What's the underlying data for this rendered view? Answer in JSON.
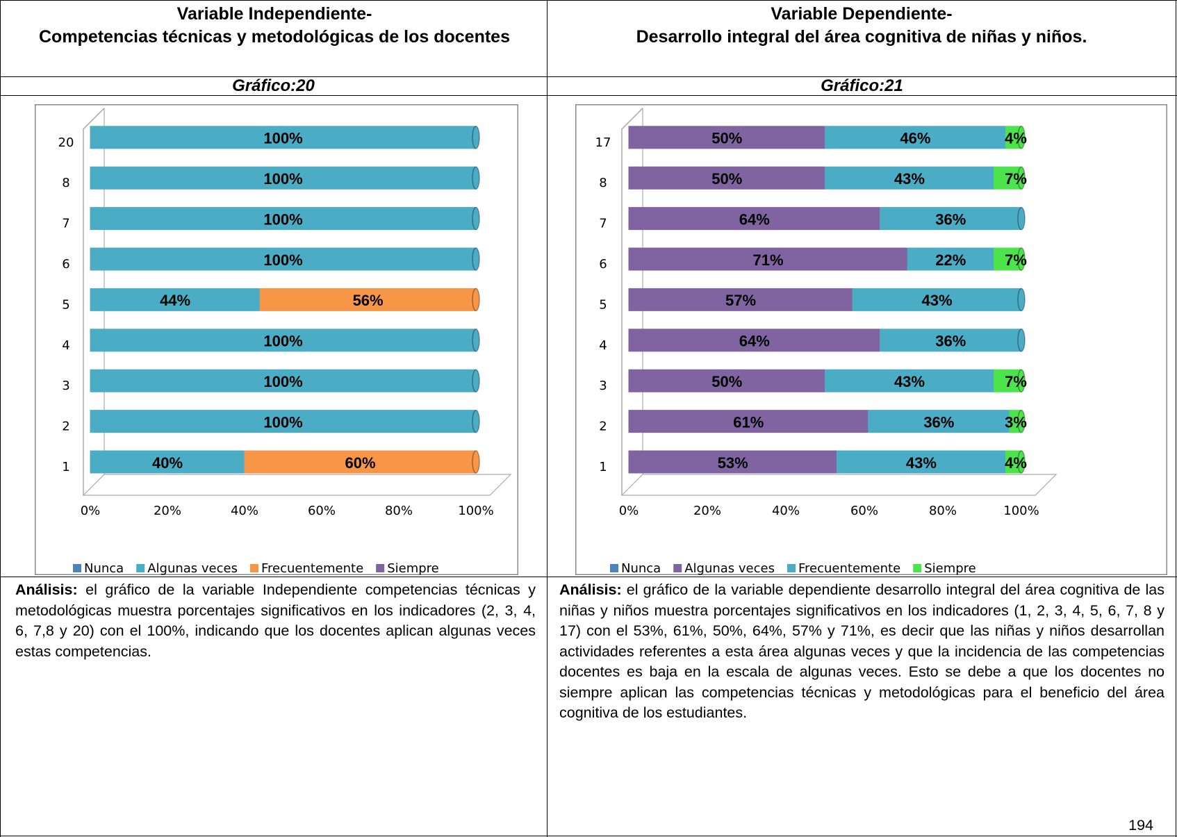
{
  "left": {
    "header_line1": "Variable Independiente-",
    "header_line2": "Competencias técnicas y metodológicas de los docentes",
    "caption": "Gráfico:20",
    "analysis_label": "Análisis:",
    "analysis": "el gráfico de la variable Independiente competencias técnicas y metodológicas muestra porcentajes significativos en los indicadores (2, 3, 4, 6, 7,8 y 20) con el 100%, indicando que los docentes aplican algunas veces estas competencias."
  },
  "right": {
    "header_line1": "Variable Dependiente-",
    "header_line2": "Desarrollo integral del área cognitiva de niñas y niños.",
    "caption": "Gráfico:21",
    "analysis_label": "Análisis:",
    "analysis": "el gráfico de la variable dependiente desarrollo integral del área cognitiva de las niñas y niños muestra porcentajes significativos en los indicadores (1, 2, 3, 4, 5, 6, 7, 8 y 17) con el 53%, 61%, 50%, 64%, 57% y 71%, es decir que las niñas y niños desarrollan actividades referentes a esta área algunas veces y que la incidencia de las competencias docentes es baja en la escala de algunas veces. Esto se debe a que los docentes no siempre aplican las competencias técnicas y metodológicas para el beneficio del área cognitiva de los estudiantes."
  },
  "page_number": "194",
  "chart_data": [
    {
      "type": "bar",
      "orientation": "horizontal",
      "stacked": true,
      "categories": [
        "1",
        "2",
        "3",
        "4",
        "5",
        "6",
        "7",
        "8",
        "20"
      ],
      "xlim": [
        0,
        100
      ],
      "xticks": [
        {
          "value": 0,
          "label": "0%"
        },
        {
          "value": 20,
          "label": "20%"
        },
        {
          "value": 40,
          "label": "40%"
        },
        {
          "value": 60,
          "label": "60%"
        },
        {
          "value": 80,
          "label": "80%"
        },
        {
          "value": 100,
          "label": "100%"
        }
      ],
      "legend": "bottom",
      "series": [
        {
          "name": "Nunca",
          "color": "#4f81bd",
          "values": [
            0,
            0,
            0,
            0,
            0,
            0,
            0,
            0,
            0
          ],
          "value_labels": [
            null,
            null,
            null,
            null,
            null,
            null,
            null,
            null,
            null
          ]
        },
        {
          "name": "Algunas veces",
          "color": "#4bacc6",
          "values": [
            40,
            100,
            100,
            100,
            44,
            100,
            100,
            100,
            100
          ],
          "value_labels": [
            "40%",
            "100%",
            "100%",
            "100%",
            "44%",
            "100%",
            "100%",
            "100%",
            "100%"
          ]
        },
        {
          "name": "Frecuentemente",
          "color": "#f79646",
          "values": [
            60,
            0,
            0,
            0,
            56,
            0,
            0,
            0,
            0
          ],
          "value_labels": [
            "60%",
            null,
            null,
            null,
            "56%",
            null,
            null,
            null,
            null
          ]
        },
        {
          "name": "Siempre",
          "color": "#8064a2",
          "values": [
            0,
            0,
            0,
            0,
            0,
            0,
            0,
            0,
            0
          ],
          "value_labels": [
            null,
            null,
            null,
            null,
            null,
            null,
            null,
            null,
            null
          ]
        }
      ]
    },
    {
      "type": "bar",
      "orientation": "horizontal",
      "stacked": true,
      "categories": [
        "1",
        "2",
        "3",
        "4",
        "5",
        "6",
        "7",
        "8",
        "17"
      ],
      "xlim": [
        0,
        100
      ],
      "xticks": [
        {
          "value": 0,
          "label": "0%"
        },
        {
          "value": 20,
          "label": "20%"
        },
        {
          "value": 40,
          "label": "40%"
        },
        {
          "value": 60,
          "label": "60%"
        },
        {
          "value": 80,
          "label": "80%"
        },
        {
          "value": 100,
          "label": "100%"
        }
      ],
      "legend": "bottom",
      "series": [
        {
          "name": "Nunca",
          "color": "#4f81bd",
          "values": [
            0,
            0,
            0,
            0,
            0,
            0,
            0,
            0,
            0
          ],
          "value_labels": [
            null,
            null,
            null,
            null,
            null,
            null,
            null,
            null,
            null
          ]
        },
        {
          "name": "Algunas veces",
          "color": "#8064a2",
          "values": [
            53,
            61,
            50,
            64,
            57,
            71,
            64,
            50,
            50
          ],
          "value_labels": [
            "53%",
            "61%",
            "50%",
            "64%",
            "57%",
            "71%",
            "64%",
            "50%",
            "50%"
          ]
        },
        {
          "name": "Frecuentemente",
          "color": "#4bacc6",
          "values": [
            43,
            36,
            43,
            36,
            43,
            22,
            36,
            43,
            46
          ],
          "value_labels": [
            "43%",
            "36%",
            "43%",
            "36%",
            "43%",
            "22%",
            "36%",
            "43%",
            "46%"
          ]
        },
        {
          "name": "Siempre",
          "color": "#4de34d",
          "values": [
            4,
            3,
            7,
            0,
            0,
            7,
            0,
            7,
            4
          ],
          "value_labels": [
            "4%",
            "3%",
            "7%",
            null,
            null,
            "7%",
            null,
            "7%",
            "4%"
          ]
        }
      ]
    }
  ]
}
